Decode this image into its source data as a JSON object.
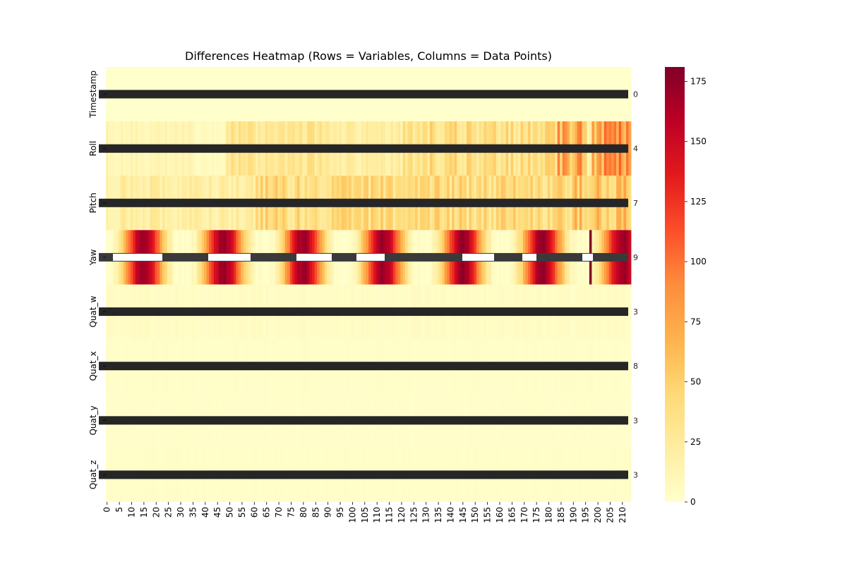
{
  "chart_data": {
    "type": "heatmap",
    "title": "Differences Heatmap (Rows = Variables, Columns = Data Points)",
    "rows": [
      "Timestamp",
      "Roll",
      "Pitch",
      "Yaw",
      "Quat_w",
      "Quat_x",
      "Quat_y",
      "Quat_z"
    ],
    "columns": {
      "start": 0,
      "end": 213,
      "tick_step": 5
    },
    "colormap": "YlOrRd",
    "colorbar": {
      "min": 0,
      "max": 181,
      "ticks": [
        0,
        25,
        50,
        75,
        100,
        125,
        150,
        175
      ]
    },
    "annotations": {
      "shown": true,
      "row_end_labels": [
        "0",
        "4",
        "7",
        "9",
        "3",
        "8",
        "3",
        "3"
      ]
    },
    "row_profiles": {
      "Timestamp": {
        "base": 0
      },
      "Roll": {
        "segments": [
          {
            "from": 0,
            "to": 35,
            "value": 12
          },
          {
            "from": 36,
            "to": 48,
            "value": 6
          },
          {
            "from": 49,
            "to": 90,
            "value": 30
          },
          {
            "from": 91,
            "to": 120,
            "value": 20
          },
          {
            "from": 121,
            "to": 183,
            "value": 38
          },
          {
            "from": 184,
            "to": 195,
            "value": 70
          },
          {
            "from": 196,
            "to": 197,
            "value": 15
          },
          {
            "from": 198,
            "to": 213,
            "value": 75
          }
        ]
      },
      "Pitch": {
        "segments": [
          {
            "from": 0,
            "to": 60,
            "value": 22
          },
          {
            "from": 61,
            "to": 190,
            "value": 40
          },
          {
            "from": 191,
            "to": 213,
            "value": 55
          }
        ]
      },
      "Yaw": {
        "period": 32.5,
        "phase": 15,
        "amplitude": 170,
        "peak_column": 197,
        "peak_value": 180
      },
      "Quat_w": {
        "base": 4
      },
      "Quat_x": {
        "base": 2
      },
      "Quat_y": {
        "base": 1
      },
      "Quat_z": {
        "base": 2
      }
    }
  }
}
